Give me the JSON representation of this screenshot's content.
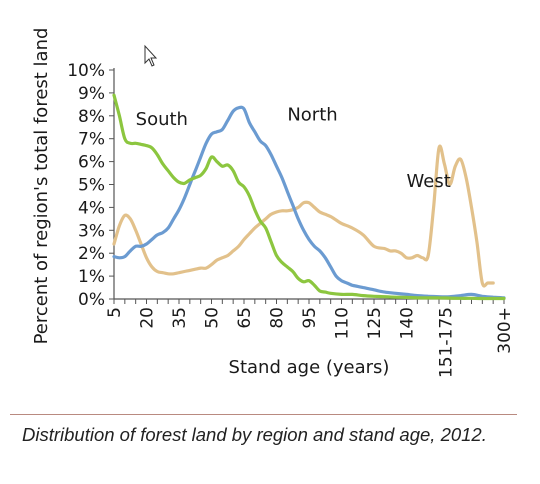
{
  "chart_data": {
    "type": "line",
    "title": "",
    "xlabel": "Stand age (years)",
    "ylabel": "Percent of region's total forest land",
    "ylim": [
      0,
      10
    ],
    "y_ticks": [
      "0%",
      "1%",
      "2%",
      "3%",
      "4%",
      "5%",
      "6%",
      "7%",
      "8%",
      "9%",
      "10%"
    ],
    "x_ticks": [
      "5",
      "20",
      "35",
      "50",
      "65",
      "80",
      "95",
      "110",
      "125",
      "140",
      "151-175",
      "300+"
    ],
    "grid": false,
    "legend": "labels on lines",
    "series": [
      {
        "name": "South",
        "color": "#8cc63f",
        "x": [
          5,
          7.5,
          10,
          12.5,
          15,
          17.5,
          20,
          22.5,
          25,
          27.5,
          30,
          32.5,
          35,
          37.5,
          40,
          42.5,
          45,
          47.5,
          50,
          52.5,
          55,
          57.5,
          60,
          62.5,
          65,
          67.5,
          70,
          72.5,
          75,
          77.5,
          80,
          82.5,
          85,
          87.5,
          90,
          92.5,
          95,
          97.5,
          100,
          102.5,
          105,
          110,
          115,
          120,
          125,
          130,
          135,
          140,
          145,
          150,
          155,
          160,
          165,
          170,
          175,
          180,
          185
        ],
        "values": [
          8.9,
          8.0,
          7.0,
          6.8,
          6.8,
          6.75,
          6.7,
          6.6,
          6.3,
          5.9,
          5.6,
          5.3,
          5.1,
          5.05,
          5.2,
          5.3,
          5.4,
          5.7,
          6.2,
          6.0,
          5.8,
          5.85,
          5.6,
          5.1,
          4.9,
          4.5,
          3.9,
          3.4,
          3.1,
          2.5,
          1.9,
          1.6,
          1.4,
          1.2,
          0.9,
          0.75,
          0.8,
          0.6,
          0.35,
          0.3,
          0.25,
          0.2,
          0.2,
          0.15,
          0.12,
          0.1,
          0.08,
          0.07,
          0.05,
          0.05,
          0.05,
          0.04,
          0.03,
          0.03,
          0.02,
          0.02,
          0.02
        ]
      },
      {
        "name": "North",
        "color": "#6b9bd1",
        "x": [
          5,
          7.5,
          10,
          12.5,
          15,
          17.5,
          20,
          22.5,
          25,
          27.5,
          30,
          32.5,
          35,
          37.5,
          40,
          42.5,
          45,
          47.5,
          50,
          52.5,
          55,
          57.5,
          60,
          62.5,
          65,
          67.5,
          70,
          72.5,
          75,
          77.5,
          80,
          82.5,
          85,
          87.5,
          90,
          92.5,
          95,
          97.5,
          100,
          102.5,
          105,
          107.5,
          110,
          112.5,
          115,
          117.5,
          120,
          125,
          130,
          135,
          140,
          145,
          150,
          155,
          160,
          165,
          170,
          175,
          180,
          185
        ],
        "values": [
          1.85,
          1.8,
          1.85,
          2.1,
          2.3,
          2.3,
          2.4,
          2.6,
          2.8,
          2.9,
          3.1,
          3.5,
          3.9,
          4.4,
          5.0,
          5.6,
          6.2,
          6.8,
          7.2,
          7.3,
          7.4,
          7.8,
          8.2,
          8.35,
          8.3,
          7.7,
          7.3,
          6.9,
          6.7,
          6.3,
          5.8,
          5.3,
          4.7,
          4.1,
          3.5,
          3.0,
          2.6,
          2.3,
          2.1,
          1.8,
          1.4,
          1.0,
          0.8,
          0.7,
          0.6,
          0.55,
          0.5,
          0.4,
          0.3,
          0.25,
          0.2,
          0.15,
          0.12,
          0.1,
          0.1,
          0.15,
          0.2,
          0.12,
          0.08,
          0.05
        ]
      },
      {
        "name": "West",
        "color": "#e2c18b",
        "x": [
          5,
          7.5,
          10,
          12.5,
          15,
          17.5,
          20,
          22.5,
          25,
          27.5,
          30,
          32.5,
          35,
          37.5,
          40,
          42.5,
          45,
          47.5,
          50,
          52.5,
          55,
          57.5,
          60,
          62.5,
          65,
          67.5,
          70,
          72.5,
          75,
          77.5,
          80,
          82.5,
          85,
          87.5,
          90,
          92.5,
          95,
          97.5,
          100,
          102.5,
          105,
          107.5,
          110,
          115,
          120,
          125,
          130,
          132.5,
          135,
          137.5,
          140,
          142.5,
          145,
          147.5,
          150,
          152.5,
          155,
          157.5,
          160,
          162.5,
          165,
          167.5,
          170,
          172.5,
          175,
          177.5,
          180
        ],
        "values": [
          2.4,
          3.2,
          3.65,
          3.5,
          3.0,
          2.4,
          1.8,
          1.4,
          1.2,
          1.15,
          1.1,
          1.1,
          1.15,
          1.2,
          1.25,
          1.3,
          1.35,
          1.35,
          1.5,
          1.7,
          1.8,
          1.9,
          2.1,
          2.3,
          2.6,
          2.85,
          3.1,
          3.3,
          3.5,
          3.7,
          3.8,
          3.85,
          3.85,
          3.9,
          4.0,
          4.2,
          4.2,
          4.0,
          3.8,
          3.7,
          3.6,
          3.45,
          3.3,
          3.1,
          2.8,
          2.3,
          2.2,
          2.1,
          2.1,
          2.0,
          1.8,
          1.8,
          1.9,
          1.8,
          1.9,
          4.0,
          6.6,
          5.9,
          5.0,
          5.8,
          6.1,
          5.3,
          4.0,
          2.5,
          0.7,
          0.7,
          0.7
        ]
      }
    ]
  },
  "caption": "Distribution of forest land by region and stand age, 2012."
}
